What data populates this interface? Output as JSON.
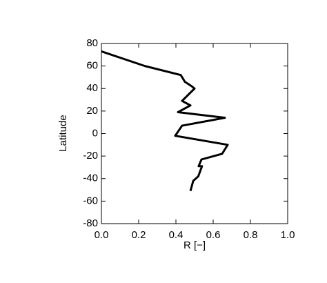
{
  "chart_data": {
    "type": "line",
    "xlabel": "R [−]",
    "ylabel": "Latitude",
    "x": [
      0.0,
      0.233,
      0.426,
      0.448,
      0.485,
      0.5,
      0.433,
      0.478,
      0.411,
      0.663,
      0.433,
      0.396,
      0.678,
      0.648,
      0.537,
      0.522,
      0.54,
      0.52,
      0.493,
      0.478
    ],
    "values": [
      73,
      60,
      52,
      46,
      42,
      40,
      29,
      25,
      19,
      14,
      7,
      -2,
      -10,
      -18,
      -23,
      -29,
      -29,
      -38,
      -42,
      -51
    ],
    "color": "#000000",
    "xlim": [
      0.0,
      1.0
    ],
    "xticks": [
      {
        "value": 0,
        "label": "0.0"
      },
      0.2,
      0.4,
      0.6,
      0.8,
      {
        "value": 1,
        "label": "1.0"
      }
    ],
    "ylim": [
      -80,
      80
    ],
    "yticks": [
      -80,
      -60,
      -40,
      -20,
      0,
      20,
      40,
      60,
      80
    ]
  }
}
